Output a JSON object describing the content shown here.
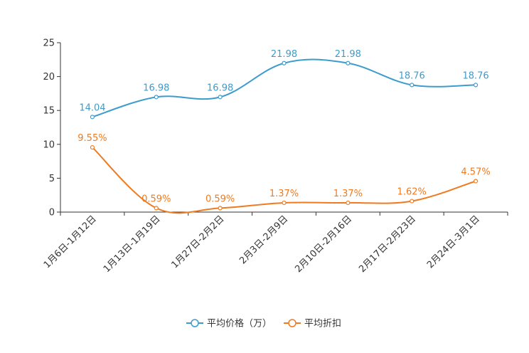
{
  "chart_data": {
    "type": "line",
    "title": "",
    "xlabel": "",
    "ylabel": "",
    "ylim": [
      0,
      25
    ],
    "yticks": [
      "0",
      "5",
      "10",
      "15",
      "20",
      "25"
    ],
    "categories": [
      "1月6日-1月12日",
      "1月13日-1月19日",
      "1月27日-2月2日",
      "2月3日-2月9日",
      "2月10日-2月16日",
      "2月17日-2月23日",
      "2月24日-3月1日"
    ],
    "series": [
      {
        "name": "平均价格（万）",
        "color": "#3d9ccc",
        "values": [
          14.04,
          16.98,
          16.98,
          21.98,
          21.98,
          18.76,
          18.76
        ],
        "labels": [
          "14.04",
          "16.98",
          "16.98",
          "21.98",
          "21.98",
          "18.76",
          "18.76"
        ]
      },
      {
        "name": "平均折扣",
        "color": "#f07a1f",
        "values": [
          9.55,
          0.59,
          0.59,
          1.37,
          1.37,
          1.62,
          4.57
        ],
        "labels": [
          "9.55%",
          "0.59%",
          "0.59%",
          "1.37%",
          "1.37%",
          "1.62%",
          "4.57%"
        ]
      }
    ],
    "legend_position": "bottom-center"
  }
}
